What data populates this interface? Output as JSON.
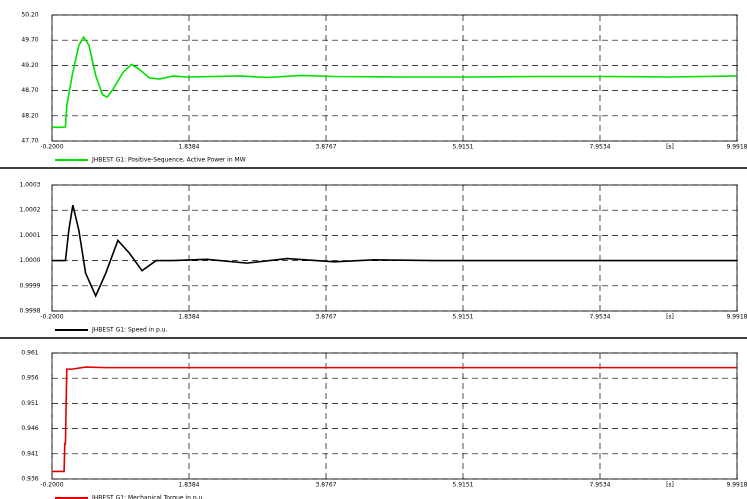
{
  "chart_data": [
    {
      "type": "line",
      "xlabel": "[s]",
      "xlim": [
        -0.2,
        9.9918
      ],
      "xticks": [
        {
          "value": -0.2,
          "label": "-0.2000"
        },
        1.8384,
        3.8767,
        5.9151,
        7.9534,
        9.9918
      ],
      "ylim": [
        47.7,
        50.2
      ],
      "yticks": [
        {
          "value": 50.2,
          "label": "50.20"
        },
        {
          "value": 49.7,
          "label": "49.70"
        },
        {
          "value": 49.2,
          "label": "49.20"
        },
        {
          "value": 48.7,
          "label": "48.70"
        },
        {
          "value": 48.2,
          "label": "48.20"
        },
        {
          "value": 47.7,
          "label": "47.70"
        }
      ],
      "grid": true,
      "x": [
        -0.2,
        -0.1,
        0.0,
        0.02,
        0.1,
        0.2,
        0.27,
        0.35,
        0.45,
        0.55,
        0.62,
        0.72,
        0.85,
        0.98,
        1.1,
        1.25,
        1.4,
        1.6,
        1.8,
        2.2,
        2.6,
        3.0,
        3.5,
        4.0,
        5.0,
        6.0,
        7.0,
        8.0,
        9.0,
        9.99
      ],
      "series": [
        {
          "name": "JHBEST G1: Positive-Sequence, Active Power in MW",
          "color": "#00e000",
          "values": [
            47.98,
            47.97,
            47.98,
            48.4,
            49.0,
            49.6,
            49.76,
            49.6,
            49.0,
            48.62,
            48.57,
            48.75,
            49.05,
            49.22,
            49.12,
            48.95,
            48.93,
            48.99,
            48.97,
            48.98,
            48.99,
            48.96,
            49.0,
            48.98,
            48.97,
            48.97,
            48.98,
            48.98,
            48.97,
            48.99
          ]
        }
      ]
    },
    {
      "type": "line",
      "xlabel": "[s]",
      "xlim": [
        -0.2,
        9.9918
      ],
      "xticks": [
        {
          "value": -0.2,
          "label": "-0.2000"
        },
        1.8384,
        3.8767,
        5.9151,
        7.9534,
        9.9918
      ],
      "ylim": [
        0.9998,
        1.0003
      ],
      "yticks": [
        1.0003,
        1.0002,
        1.0001,
        {
          "value": 1,
          "label": "1.0000"
        },
        0.9999,
        0.9998
      ],
      "grid": true,
      "x": [
        -0.2,
        0.0,
        0.05,
        0.11,
        0.2,
        0.3,
        0.45,
        0.6,
        0.78,
        0.95,
        1.14,
        1.35,
        1.6,
        2.1,
        2.7,
        3.3,
        4.0,
        4.6,
        5.5,
        7.0,
        8.5,
        9.99
      ],
      "series": [
        {
          "name": "JHBEST G1: Speed in p.u.",
          "color": "#000000",
          "values": [
            1.0,
            1.0,
            1.00012,
            1.00022,
            1.00012,
            0.99995,
            0.99986,
            0.99995,
            1.00008,
            1.00003,
            0.99996,
            1.0,
            1.0,
            1.000005,
            0.99999,
            1.000008,
            0.999995,
            1.000003,
            1.0,
            1.0,
            1.0,
            1.0
          ]
        }
      ]
    },
    {
      "type": "line",
      "xlabel": "[s]",
      "xlim": [
        -0.2,
        9.9918
      ],
      "xticks": [
        {
          "value": -0.2,
          "label": "-0.2000"
        },
        1.8384,
        3.8767,
        5.9151,
        7.9534,
        9.9918
      ],
      "ylim": [
        0.936,
        0.961
      ],
      "yticks": [
        0.961,
        0.956,
        0.951,
        0.946,
        0.941,
        0.936
      ],
      "grid": true,
      "x": [
        -0.2,
        -0.02,
        -0.01,
        0.0,
        0.02,
        0.1,
        0.3,
        0.6,
        2.0,
        5.0,
        9.99
      ],
      "series": [
        {
          "name": "JHBEST G1: Mechanical Torque in p.u.",
          "color": "#e00000",
          "values": [
            0.9375,
            0.9375,
            0.943,
            0.943,
            0.9578,
            0.9578,
            0.9582,
            0.9581,
            0.9581,
            0.9581,
            0.9581
          ]
        }
      ]
    }
  ]
}
